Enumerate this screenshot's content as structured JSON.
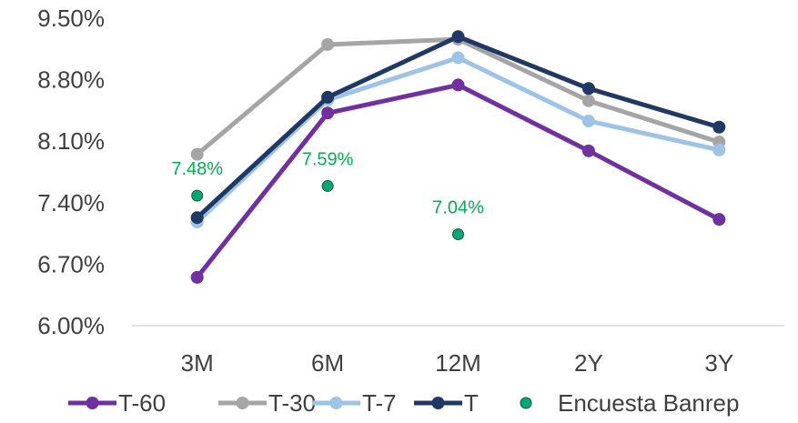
{
  "chart_data": {
    "type": "line",
    "categories": [
      "3M",
      "6M",
      "12M",
      "2Y",
      "3Y"
    ],
    "ylim": [
      0.06,
      0.095
    ],
    "yticks": [
      0.06,
      0.067,
      0.074,
      0.081,
      0.088,
      0.095
    ],
    "ytick_labels": [
      "6.00%",
      "6.70%",
      "7.40%",
      "8.10%",
      "8.80%",
      "9.50%"
    ],
    "grid": false,
    "legend_position": "bottom",
    "series": [
      {
        "name": "T-60",
        "color": "#7030A0",
        "values": [
          0.0655,
          0.0842,
          0.0874,
          0.0799,
          0.0721
        ]
      },
      {
        "name": "T-30",
        "color": "#A5A5A5",
        "values": [
          0.0795,
          0.092,
          0.0926,
          0.0856,
          0.0809
        ]
      },
      {
        "name": "T-7",
        "color": "#9DC3E6",
        "values": [
          0.0718,
          0.0857,
          0.0905,
          0.0833,
          0.08
        ]
      },
      {
        "name": "T",
        "color": "#203864",
        "values": [
          0.0723,
          0.086,
          0.0929,
          0.087,
          0.0826
        ]
      },
      {
        "name": "Encuesta Banrep",
        "color": "#00B050",
        "marker_fill": "#00A878",
        "type": "scatter",
        "values": [
          0.0748,
          0.0759,
          0.0704,
          null,
          null
        ],
        "labels": [
          "7.48%",
          "7.59%",
          "7.04%",
          null,
          null
        ]
      }
    ]
  }
}
